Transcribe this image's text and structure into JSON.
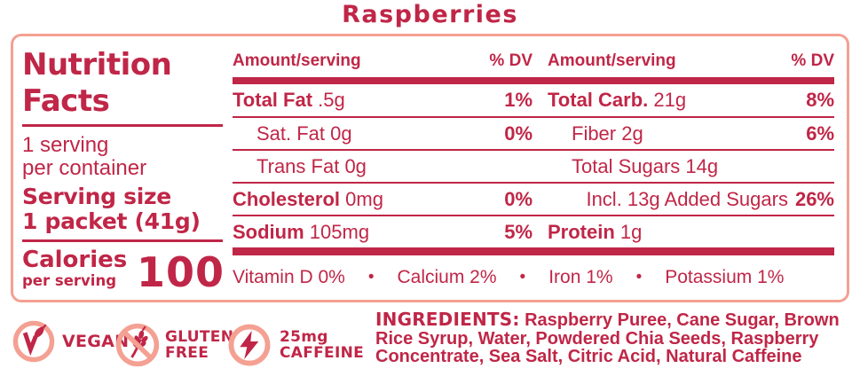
{
  "title": "Raspberries",
  "colors": {
    "crimson_text": "#c02647",
    "salmon_accent": "#f4a092",
    "background": "#ffffff"
  },
  "panel": {
    "heading_line1": "Nutrition",
    "heading_line2": "Facts",
    "servings_line1": "1 serving",
    "servings_line2": "per container",
    "serving_size_label": "Serving size",
    "serving_size_value": "1 packet (41g)",
    "calories_label": "Calories",
    "calories_sub": "per serving",
    "calories_value": "100",
    "header": {
      "amount_label": "Amount/serving",
      "dv_label": "% DV"
    },
    "rows": [
      {
        "left": {
          "label": "Total Fat",
          "bold": true,
          "value": ".5g",
          "dv": "1%"
        },
        "right": {
          "label": "Total Carb.",
          "bold": true,
          "value": "21g",
          "dv": "8%"
        }
      },
      {
        "left": {
          "label": "Sat. Fat",
          "indent": true,
          "value": "0g",
          "dv": "0%"
        },
        "right": {
          "label": "Fiber",
          "indent": true,
          "value": "2g",
          "dv": "6%"
        }
      },
      {
        "left": {
          "label": "Trans Fat",
          "indent": true,
          "value": "0g",
          "dv": ""
        },
        "right": {
          "label": "Total Sugars",
          "indent": true,
          "value": "14g",
          "dv": ""
        }
      },
      {
        "left": {
          "label": "Cholesterol",
          "bold": true,
          "value": "0mg",
          "dv": "0%"
        },
        "right": {
          "label": "Incl. 13g Added Sugars",
          "align_right": true,
          "value": "",
          "dv": "26%"
        }
      },
      {
        "left": {
          "label": "Sodium",
          "bold": true,
          "value": "105mg",
          "dv": "5%"
        },
        "right": {
          "label": "Protein",
          "bold": true,
          "value": "1g",
          "dv": ""
        }
      }
    ],
    "micros": [
      "Vitamin D 0%",
      "Calcium 2%",
      "Iron 1%",
      "Potassium 1%"
    ],
    "micros_separator": "•"
  },
  "badges": [
    {
      "icon": "vegan-icon",
      "lines": [
        "VEGAN"
      ]
    },
    {
      "icon": "gluten-free-icon",
      "lines": [
        "GLUTEN",
        "FREE"
      ]
    },
    {
      "icon": "caffeine-icon",
      "lines": [
        "25mg",
        "CAFFEINE"
      ]
    }
  ],
  "ingredients": {
    "label": "INGREDIENTS:",
    "text": "Raspberry Puree, Cane Sugar, Brown Rice Syrup, Water, Powdered Chia Seeds, Raspberry Concentrate, Sea Salt, Citric Acid, Natural Caffeine"
  }
}
